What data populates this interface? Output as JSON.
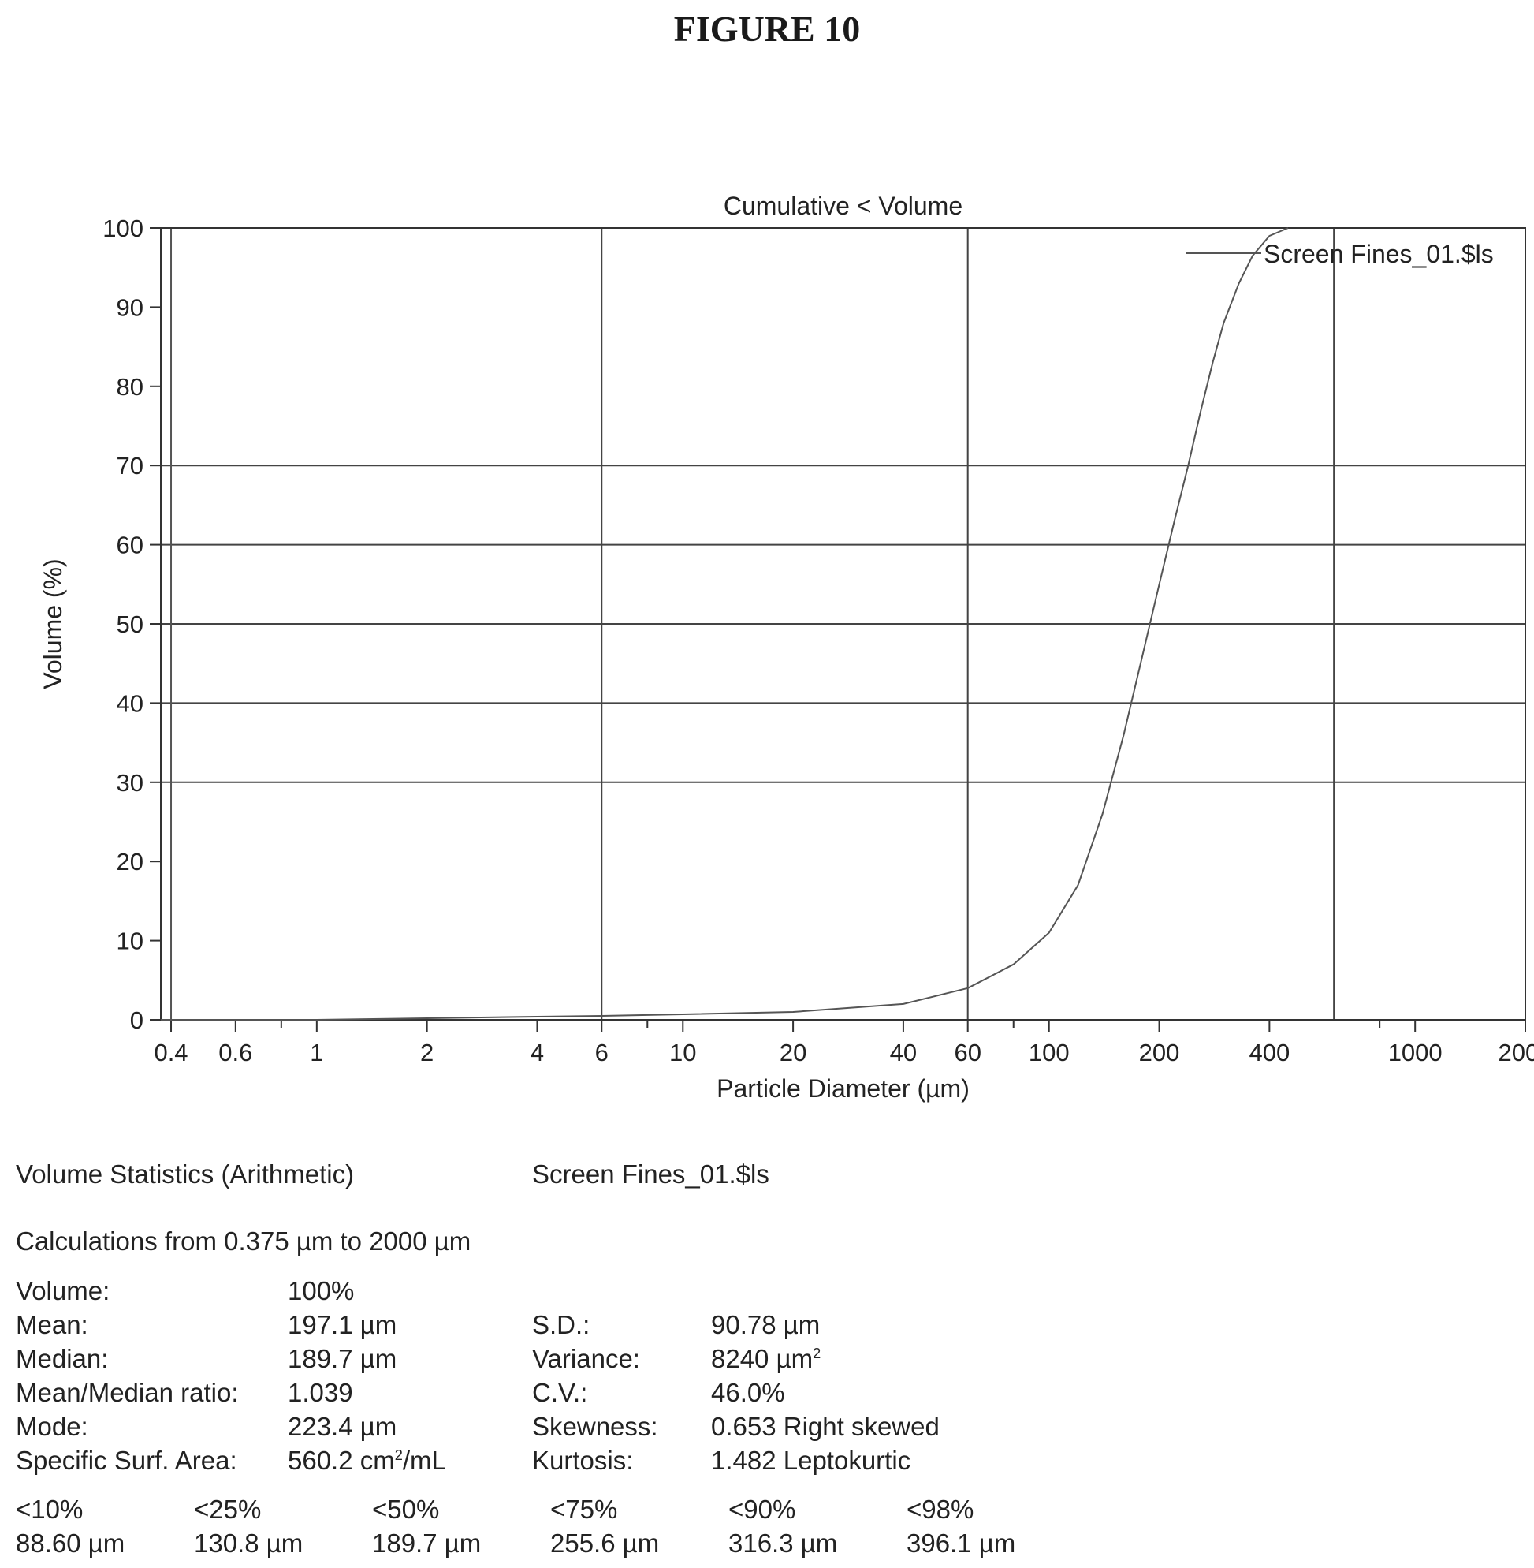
{
  "figure_title": "FIGURE 10",
  "chart_data": {
    "type": "line",
    "title": "Cumulative < Volume",
    "xlabel": "Particle Diameter (µm)",
    "ylabel": "Volume (%)",
    "xscale": "log",
    "xlim": [
      0.375,
      2000
    ],
    "ylim": [
      0,
      100
    ],
    "x_tick_labels": [
      "0.4",
      "0.6",
      "1",
      "2",
      "4",
      "6",
      "10",
      "20",
      "40",
      "60",
      "100",
      "200",
      "400",
      "1000",
      "2000"
    ],
    "x_tick_values": [
      0.4,
      0.6,
      1,
      2,
      4,
      6,
      10,
      20,
      40,
      60,
      100,
      200,
      400,
      1000,
      2000
    ],
    "x_minor_ticks": [
      0.8,
      8,
      80,
      800
    ],
    "x_gridlines": [
      6,
      60,
      600
    ],
    "y_tick_labels": [
      "0",
      "10",
      "20",
      "30",
      "40",
      "50",
      "60",
      "70",
      "80",
      "90",
      "100"
    ],
    "y_tick_values": [
      0,
      10,
      20,
      30,
      40,
      50,
      60,
      70,
      80,
      90,
      100
    ],
    "y_gridlines": [
      30,
      40,
      50,
      60,
      70
    ],
    "grid": true,
    "legend_position": "top-right",
    "series": [
      {
        "name": "Screen Fines_01.$ls",
        "color": "#555555",
        "x": [
          0.375,
          1,
          2,
          4,
          6,
          10,
          20,
          40,
          60,
          80,
          100,
          120,
          140,
          160,
          180,
          200,
          220,
          240,
          260,
          280,
          300,
          330,
          360,
          400,
          450
        ],
        "y": [
          0,
          0,
          0.2,
          0.4,
          0.5,
          0.7,
          1.0,
          2.0,
          4.0,
          7.0,
          11.0,
          17.0,
          26.0,
          36.0,
          46.0,
          55.0,
          63.0,
          70.0,
          77.0,
          83.0,
          88.0,
          93.0,
          96.5,
          99.0,
          100
        ]
      }
    ]
  },
  "stats": {
    "heading": "Volume Statistics (Arithmetic)",
    "sample": "Screen Fines_01.$ls",
    "range_text": "Calculations from 0.375 µm to 2000 µm",
    "volume_label": "Volume:",
    "volume_value": "100%",
    "mean_label": "Mean:",
    "mean_value": "197.1 µm",
    "median_label": "Median:",
    "median_value": "189.7 µm",
    "ratio_label": "Mean/Median ratio:",
    "ratio_value": "1.039",
    "mode_label": "Mode:",
    "mode_value": "223.4 µm",
    "ssa_label": "Specific Surf. Area:",
    "ssa_value_pre": "560.2 cm",
    "ssa_sup": "2",
    "ssa_value_post": "/mL",
    "sd_label": "S.D.:",
    "sd_value": "90.78 µm",
    "variance_label": "Variance:",
    "variance_value_pre": "8240 µm",
    "variance_sup": "2",
    "cv_label": "C.V.:",
    "cv_value": "46.0%",
    "skewness_label": "Skewness:",
    "skewness_value": "0.653 Right skewed",
    "kurtosis_label": "Kurtosis:",
    "kurtosis_value": "1.482 Leptokurtic",
    "percentiles": [
      {
        "label": "<10%",
        "value": "88.60 µm"
      },
      {
        "label": "<25%",
        "value": "130.8 µm"
      },
      {
        "label": "<50%",
        "value": "189.7 µm"
      },
      {
        "label": "<75%",
        "value": "255.6 µm"
      },
      {
        "label": "<90%",
        "value": "316.3 µm"
      },
      {
        "label": "<98%",
        "value": "396.1 µm"
      }
    ]
  }
}
